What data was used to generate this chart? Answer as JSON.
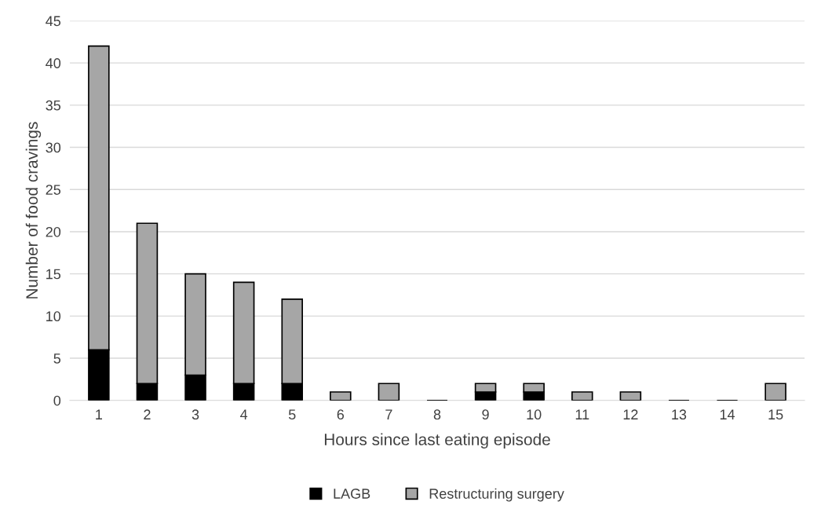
{
  "chart_data": {
    "type": "bar",
    "stacked": true,
    "xlabel": "Hours since last eating episode",
    "ylabel": "Number of food cravings",
    "categories": [
      "1",
      "2",
      "3",
      "4",
      "5",
      "6",
      "7",
      "8",
      "9",
      "10",
      "11",
      "12",
      "13",
      "14",
      "15"
    ],
    "series": [
      {
        "name": "LAGB",
        "color": "#000000",
        "values": [
          6,
          2,
          3,
          2,
          2,
          0,
          0,
          0,
          1,
          1,
          0,
          0,
          0,
          0,
          0
        ]
      },
      {
        "name": "Restructuring surgery",
        "color": "#a6a6a6",
        "values": [
          36,
          19,
          12,
          12,
          10,
          1,
          2,
          0,
          1,
          1,
          1,
          1,
          0,
          0,
          2
        ]
      }
    ],
    "ylim": [
      0,
      45
    ],
    "yticks": [
      0,
      5,
      10,
      15,
      20,
      25,
      30,
      35,
      40,
      45
    ],
    "grid": "y",
    "legend": "bottom"
  }
}
